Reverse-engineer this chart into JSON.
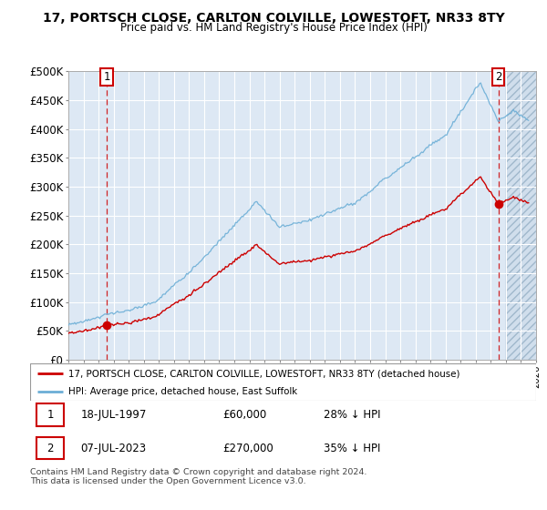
{
  "title": "17, PORTSCH CLOSE, CARLTON COLVILLE, LOWESTOFT, NR33 8TY",
  "subtitle": "Price paid vs. HM Land Registry's House Price Index (HPI)",
  "legend_line1": "17, PORTSCH CLOSE, CARLTON COLVILLE, LOWESTOFT, NR33 8TY (detached house)",
  "legend_line2": "HPI: Average price, detached house, East Suffolk",
  "annotation1_date": "18-JUL-1997",
  "annotation1_price": "£60,000",
  "annotation1_hpi": "28% ↓ HPI",
  "annotation2_date": "07-JUL-2023",
  "annotation2_price": "£270,000",
  "annotation2_hpi": "35% ↓ HPI",
  "footer": "Contains HM Land Registry data © Crown copyright and database right 2024.\nThis data is licensed under the Open Government Licence v3.0.",
  "hpi_color": "#6baed6",
  "price_color": "#cc0000",
  "plot_background": "#dde8f4",
  "ylim": [
    0,
    500000
  ],
  "yticks": [
    0,
    50000,
    100000,
    150000,
    200000,
    250000,
    300000,
    350000,
    400000,
    450000,
    500000
  ],
  "sale1_year": 1997.54,
  "sale1_value": 60000,
  "sale2_year": 2023.51,
  "sale2_value": 270000,
  "xmin": 1995,
  "xmax": 2026
}
